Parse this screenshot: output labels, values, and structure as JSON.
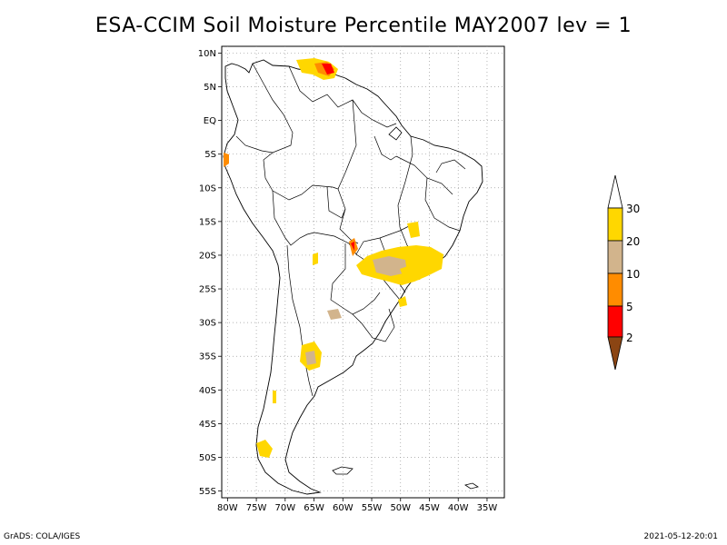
{
  "title": "ESA-CCIM Soil Moisture Percentile MAY2007 lev = 1",
  "footer": {
    "left": "GrADS: COLA/IGES",
    "right": "2021-05-12-20:01"
  },
  "map": {
    "lat_labels": [
      "10N",
      "5N",
      "EQ",
      "5S",
      "10S",
      "15S",
      "20S",
      "25S",
      "30S",
      "35S",
      "40S",
      "45S",
      "50S",
      "55S"
    ],
    "lat_values": [
      10,
      5,
      0,
      -5,
      -10,
      -15,
      -20,
      -25,
      -30,
      -35,
      -40,
      -45,
      -50,
      -55
    ],
    "lon_labels": [
      "80W",
      "75W",
      "70W",
      "65W",
      "60W",
      "55W",
      "50W",
      "45W",
      "40W",
      "35W"
    ],
    "lon_values": [
      -80,
      -75,
      -70,
      -65,
      -60,
      -55,
      -50,
      -45,
      -40,
      -35
    ],
    "extent": {
      "lon": [
        -81,
        -32
      ],
      "lat": [
        -56,
        11
      ]
    },
    "grid": true
  },
  "colorbar": {
    "labels": [
      "30",
      "20",
      "10",
      "5",
      "2"
    ],
    "colors": {
      "above30": "#ffffff",
      "c20_30": "#ffd700",
      "c10_20": "#d2b48c",
      "c5_10": "#ff8c00",
      "c2_5": "#ff0000",
      "below2": "#8b4513"
    }
  }
}
